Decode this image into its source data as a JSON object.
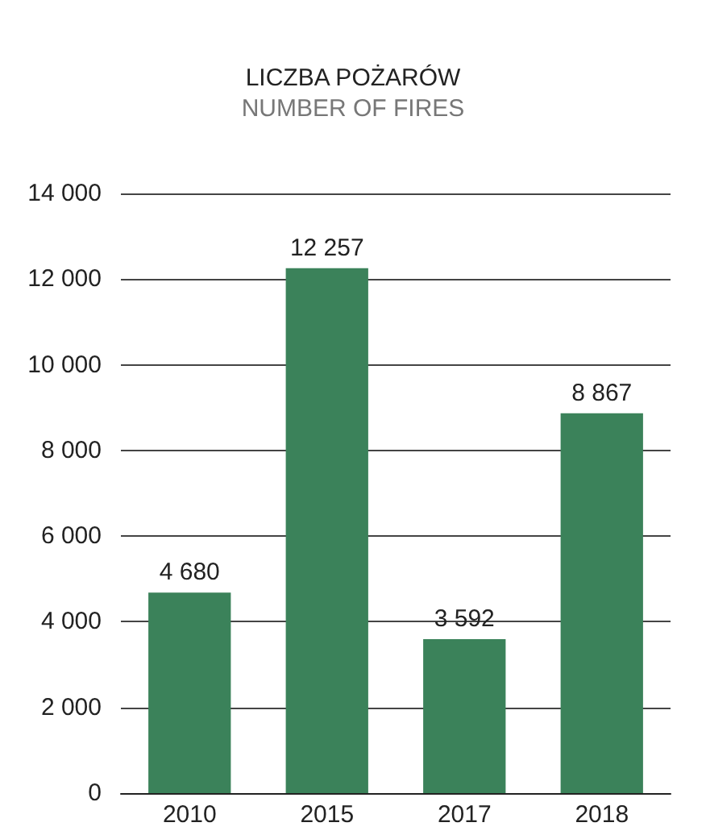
{
  "chart_data": {
    "type": "bar",
    "title": "LICZBA POŻARÓW",
    "subtitle": "NUMBER OF FIRES",
    "categories": [
      "2010",
      "2015",
      "2017",
      "2018"
    ],
    "values": [
      4680,
      12257,
      3592,
      8867
    ],
    "value_labels": [
      "4 680",
      "12 257",
      "3 592",
      "8 867"
    ],
    "color": "#3b825a",
    "ylim": [
      0,
      14000
    ],
    "yticks": [
      {
        "value": 0,
        "label": "0"
      },
      {
        "value": 2000,
        "label": "2 000"
      },
      {
        "value": 4000,
        "label": "4 000"
      },
      {
        "value": 6000,
        "label": "6 000"
      },
      {
        "value": 8000,
        "label": "8 000"
      },
      {
        "value": 10000,
        "label": "10 000"
      },
      {
        "value": 12000,
        "label": "12 000"
      },
      {
        "value": 14000,
        "label": "14 000"
      }
    ],
    "grid": "y"
  }
}
